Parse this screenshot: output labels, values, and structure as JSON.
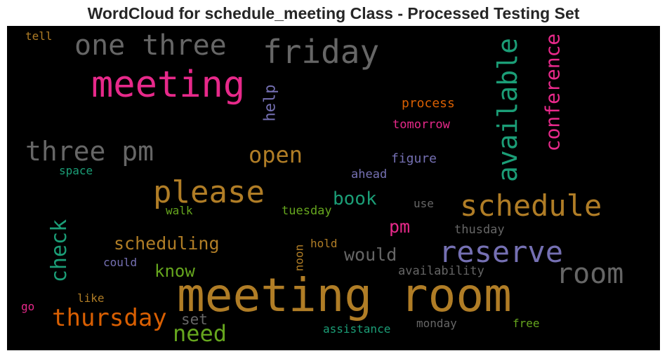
{
  "title": "WordCloud for schedule_meeting Class - Processed Testing Set",
  "colors": {
    "pink": "#e7298a",
    "gold": "#b07d26",
    "gray": "#666666",
    "green": "#1b9e77",
    "purple": "#7570b3",
    "orange": "#d95f02",
    "lime": "#66a61e"
  },
  "words": [
    {
      "text": "meeting room",
      "color": "gold"
    },
    {
      "text": "meeting",
      "color": "pink"
    },
    {
      "text": "friday",
      "color": "gray"
    },
    {
      "text": "one three",
      "color": "gray"
    },
    {
      "text": "three pm",
      "color": "gray"
    },
    {
      "text": "please",
      "color": "gold"
    },
    {
      "text": "schedule",
      "color": "gold"
    },
    {
      "text": "reserve",
      "color": "purple"
    },
    {
      "text": "room",
      "color": "gray"
    },
    {
      "text": "available",
      "color": "green"
    },
    {
      "text": "conference",
      "color": "pink"
    },
    {
      "text": "thursday",
      "color": "orange"
    },
    {
      "text": "need",
      "color": "lime"
    },
    {
      "text": "open",
      "color": "gold"
    },
    {
      "text": "check",
      "color": "green"
    },
    {
      "text": "scheduling",
      "color": "gold"
    },
    {
      "text": "book",
      "color": "green"
    },
    {
      "text": "would",
      "color": "gray"
    },
    {
      "text": "pm",
      "color": "pink"
    },
    {
      "text": "know",
      "color": "lime"
    },
    {
      "text": "set",
      "color": "gray"
    },
    {
      "text": "help",
      "color": "purple"
    },
    {
      "text": "process",
      "color": "orange"
    },
    {
      "text": "tomorrow",
      "color": "pink"
    },
    {
      "text": "figure",
      "color": "purple"
    },
    {
      "text": "ahead",
      "color": "purple"
    },
    {
      "text": "tuesday",
      "color": "lime"
    },
    {
      "text": "walk",
      "color": "lime"
    },
    {
      "text": "space",
      "color": "green"
    },
    {
      "text": "use",
      "color": "gray"
    },
    {
      "text": "thusday",
      "color": "gray"
    },
    {
      "text": "hold",
      "color": "gold"
    },
    {
      "text": "noon",
      "color": "gold"
    },
    {
      "text": "could",
      "color": "purple"
    },
    {
      "text": "availability",
      "color": "gray"
    },
    {
      "text": "like",
      "color": "gold"
    },
    {
      "text": "go",
      "color": "pink"
    },
    {
      "text": "assistance",
      "color": "green"
    },
    {
      "text": "monday",
      "color": "gray"
    },
    {
      "text": "free",
      "color": "lime"
    },
    {
      "text": "tell",
      "color": "gold"
    }
  ]
}
